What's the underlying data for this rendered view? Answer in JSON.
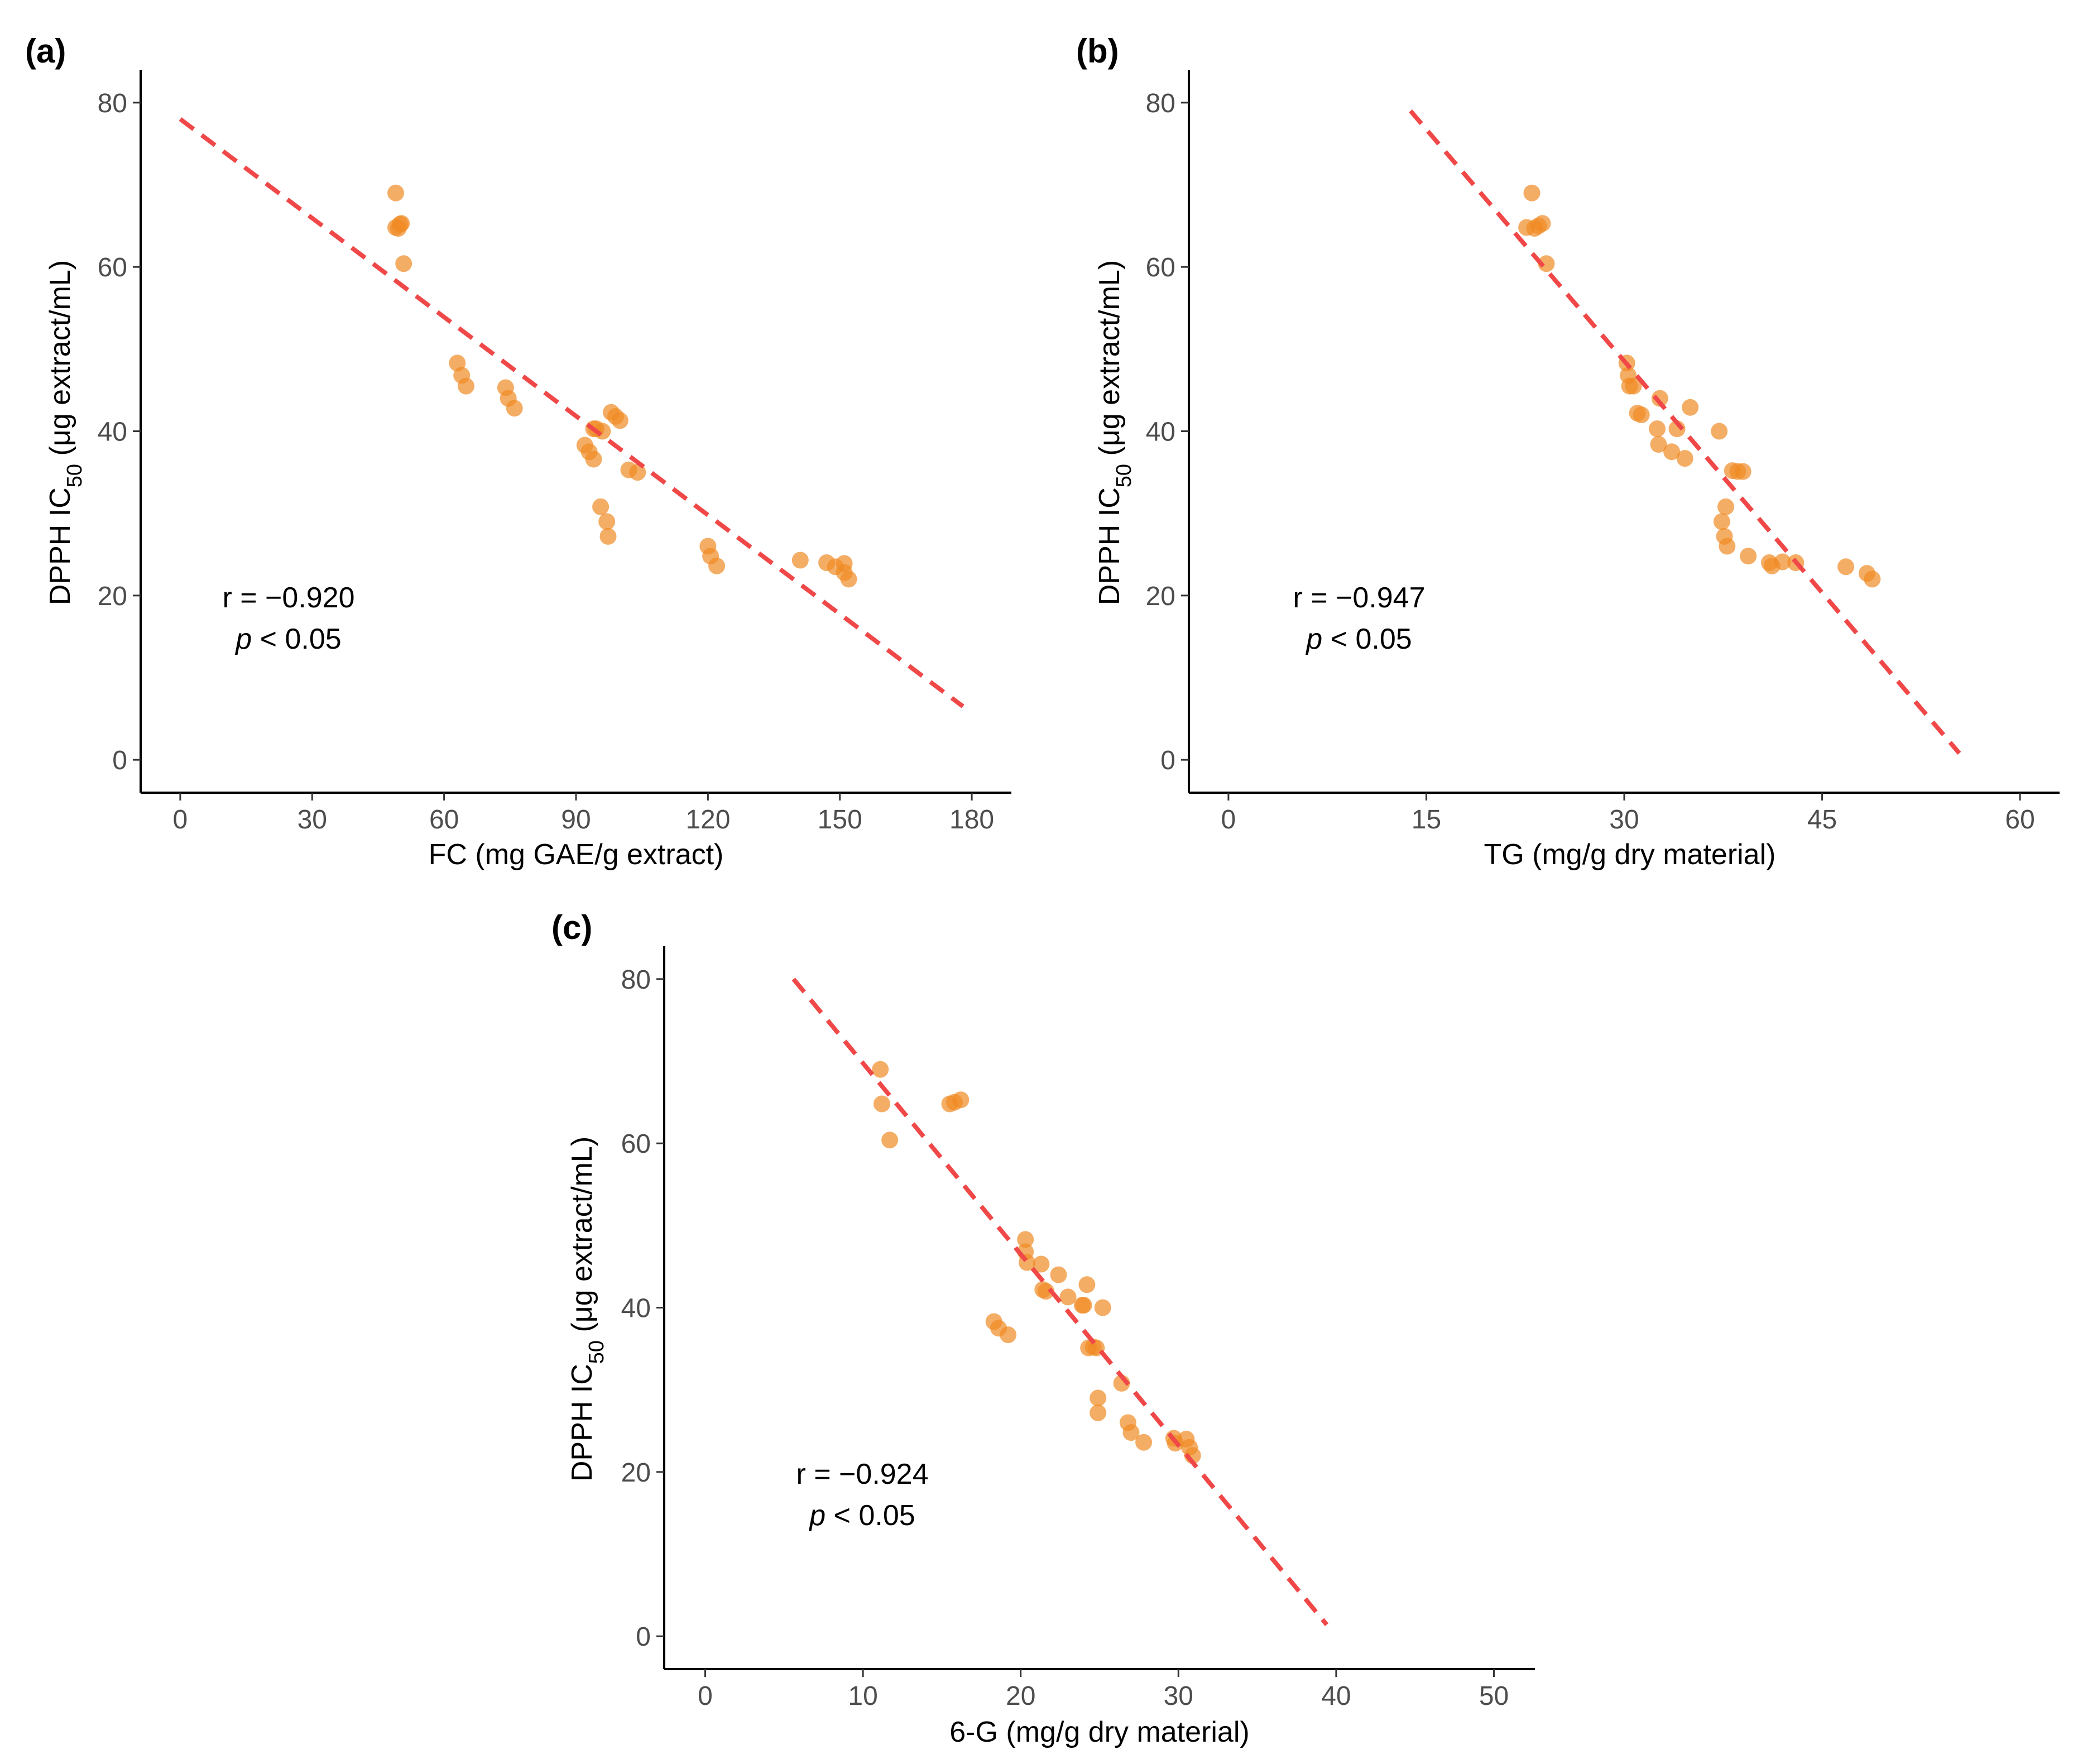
{
  "chart_data": [
    {
      "type": "scatter",
      "panel_label": "(a)",
      "xlabel": "FC (mg GAE/g extract)",
      "ylabel_pre": "DPPH  IC",
      "ylabel_sub": "50",
      "ylabel_post": " (μg extract/mL)",
      "xlim": [
        -9,
        189
      ],
      "ylim": [
        -4,
        84
      ],
      "x_ticks": [
        0,
        30,
        60,
        90,
        120,
        150,
        180
      ],
      "y_ticks": [
        0,
        20,
        40,
        60,
        80
      ],
      "annotation_r": "r = −0.920",
      "annotation_p_italic": "p",
      "annotation_p_rest": " < 0.05",
      "point_color": "#F08A24",
      "fit_color": "#F04848",
      "fit_line": [
        [
          0,
          78
        ],
        [
          178,
          6.5
        ]
      ],
      "points": [
        [
          49,
          69
        ],
        [
          49,
          64.8
        ],
        [
          49.6,
          64.7
        ],
        [
          50,
          65.2
        ],
        [
          50.3,
          65.3
        ],
        [
          50.8,
          60.4
        ],
        [
          63,
          48.3
        ],
        [
          64,
          46.8
        ],
        [
          65,
          45.5
        ],
        [
          74,
          45.3
        ],
        [
          74.6,
          44
        ],
        [
          76,
          42.8
        ],
        [
          92,
          38.3
        ],
        [
          93,
          37.5
        ],
        [
          94,
          36.6
        ],
        [
          94,
          40.3
        ],
        [
          94.6,
          40.3
        ],
        [
          96,
          40
        ],
        [
          98,
          42.3
        ],
        [
          99,
          41.8
        ],
        [
          100,
          41.3
        ],
        [
          102,
          35.3
        ],
        [
          104,
          35
        ],
        [
          95.6,
          30.8
        ],
        [
          97,
          29
        ],
        [
          97.3,
          27.2
        ],
        [
          120,
          26
        ],
        [
          120.6,
          24.8
        ],
        [
          122,
          23.6
        ],
        [
          141,
          24.3
        ],
        [
          147,
          24
        ],
        [
          149,
          23.5
        ],
        [
          151,
          23.9
        ],
        [
          151,
          22.8
        ],
        [
          152,
          22
        ]
      ]
    },
    {
      "type": "scatter",
      "panel_label": "(b)",
      "xlabel": "TG (mg/g dry material)",
      "ylabel_pre": "DPPH  IC",
      "ylabel_sub": "50",
      "ylabel_post": " (μg extract/mL)",
      "xlim": [
        -3,
        63
      ],
      "ylim": [
        -4,
        84
      ],
      "x_ticks": [
        0,
        15,
        30,
        45,
        60
      ],
      "y_ticks": [
        0,
        20,
        40,
        60,
        80
      ],
      "annotation_r": "r = −0.947",
      "annotation_p_italic": "p",
      "annotation_p_rest": " < 0.05",
      "point_color": "#F08A24",
      "fit_color": "#F04848",
      "fit_line": [
        [
          13.8,
          79
        ],
        [
          55.4,
          0.8
        ]
      ],
      "points": [
        [
          22.6,
          64.8
        ],
        [
          23,
          69
        ],
        [
          23.2,
          64.7
        ],
        [
          23.5,
          65
        ],
        [
          23.8,
          65.3
        ],
        [
          24.1,
          60.4
        ],
        [
          30.2,
          48.3
        ],
        [
          30.3,
          46.8
        ],
        [
          30.4,
          45.5
        ],
        [
          30.7,
          45.5
        ],
        [
          31,
          42.2
        ],
        [
          31.3,
          42
        ],
        [
          32.5,
          40.3
        ],
        [
          32.6,
          38.4
        ],
        [
          32.7,
          44
        ],
        [
          33.6,
          37.5
        ],
        [
          34,
          40.3
        ],
        [
          34.6,
          36.7
        ],
        [
          35,
          42.9
        ],
        [
          37.2,
          40
        ],
        [
          37.4,
          29
        ],
        [
          37.6,
          27.2
        ],
        [
          37.7,
          30.8
        ],
        [
          37.8,
          26
        ],
        [
          38.2,
          35.2
        ],
        [
          38.6,
          35.1
        ],
        [
          39,
          35.1
        ],
        [
          39.4,
          24.8
        ],
        [
          41,
          24
        ],
        [
          41.2,
          23.6
        ],
        [
          42,
          24.1
        ],
        [
          43,
          24
        ],
        [
          46.8,
          23.5
        ],
        [
          48.4,
          22.7
        ],
        [
          48.8,
          22
        ]
      ]
    },
    {
      "type": "scatter",
      "panel_label": "(c)",
      "xlabel": "6-G (mg/g dry material)",
      "ylabel_pre": "DPPH  IC",
      "ylabel_sub": "50",
      "ylabel_post": " (μg extract/mL)",
      "xlim": [
        -2.6,
        52.6
      ],
      "ylim": [
        -4,
        84
      ],
      "x_ticks": [
        0,
        10,
        20,
        30,
        40,
        50
      ],
      "y_ticks": [
        0,
        20,
        40,
        60,
        80
      ],
      "annotation_r": "r = −0.924",
      "annotation_p_italic": "p",
      "annotation_p_rest": " < 0.05",
      "point_color": "#F08A24",
      "fit_color": "#F04848",
      "fit_line": [
        [
          5.6,
          80
        ],
        [
          39.4,
          1.4
        ]
      ],
      "points": [
        [
          11.1,
          69
        ],
        [
          11.2,
          64.8
        ],
        [
          11.7,
          60.4
        ],
        [
          15.5,
          64.8
        ],
        [
          15.8,
          65
        ],
        [
          16.2,
          65.3
        ],
        [
          18.3,
          38.3
        ],
        [
          18.6,
          37.5
        ],
        [
          19.2,
          36.7
        ],
        [
          20.3,
          48.3
        ],
        [
          20.3,
          46.8
        ],
        [
          20.4,
          45.5
        ],
        [
          21.3,
          45.3
        ],
        [
          21.4,
          42.2
        ],
        [
          21.6,
          42
        ],
        [
          22.4,
          44
        ],
        [
          23,
          41.3
        ],
        [
          23.9,
          40.3
        ],
        [
          24,
          40.3
        ],
        [
          24.3,
          35.1
        ],
        [
          24.2,
          42.8
        ],
        [
          24.6,
          35.2
        ],
        [
          24.8,
          35.1
        ],
        [
          24.9,
          29
        ],
        [
          24.9,
          27.2
        ],
        [
          25.2,
          40
        ],
        [
          26.4,
          30.8
        ],
        [
          26.8,
          26
        ],
        [
          27,
          24.8
        ],
        [
          27.8,
          23.6
        ],
        [
          29.7,
          24.1
        ],
        [
          29.8,
          23.5
        ],
        [
          30.5,
          24
        ],
        [
          30.7,
          23
        ],
        [
          30.9,
          22
        ]
      ]
    }
  ]
}
